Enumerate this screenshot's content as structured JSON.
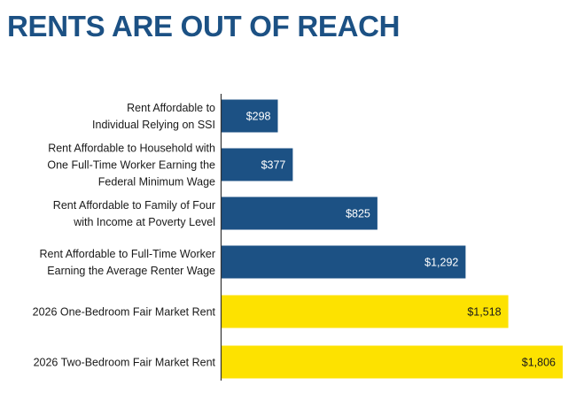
{
  "title": "RENTS ARE OUT OF REACH",
  "colors": {
    "title": "#1c5184",
    "primary_bar": "#1c5184",
    "highlight_bar": "#fde200",
    "axis": "#333333",
    "primary_label": "#ffffff",
    "highlight_label": "#1a1a1a"
  },
  "chart_data": {
    "type": "bar",
    "orientation": "horizontal",
    "title": "RENTS ARE OUT OF REACH",
    "xlabel": "",
    "ylabel": "",
    "xlim": [
      0,
      1806
    ],
    "grid": false,
    "categories": [
      [
        "Rent Affordable to",
        "Individual Relying on SSI"
      ],
      [
        "Rent Affordable to Household with",
        "One Full-Time Worker Earning the",
        "Federal Minimum Wage"
      ],
      [
        "Rent Affordable to Family of Four",
        "with Income at Poverty Level"
      ],
      [
        "Rent Affordable to Full-Time Worker",
        "Earning the Average Renter Wage"
      ],
      [
        "2026 One-Bedroom Fair Market Rent"
      ],
      [
        "2026 Two-Bedroom Fair Market Rent"
      ]
    ],
    "values": [
      298,
      377,
      825,
      1292,
      1518,
      1806
    ],
    "value_labels": [
      "$298",
      "$377",
      "$825",
      "$1,292",
      "$1,518",
      "$1,806"
    ],
    "bar_groups": [
      "primary",
      "primary",
      "primary",
      "primary",
      "highlight",
      "highlight"
    ]
  }
}
